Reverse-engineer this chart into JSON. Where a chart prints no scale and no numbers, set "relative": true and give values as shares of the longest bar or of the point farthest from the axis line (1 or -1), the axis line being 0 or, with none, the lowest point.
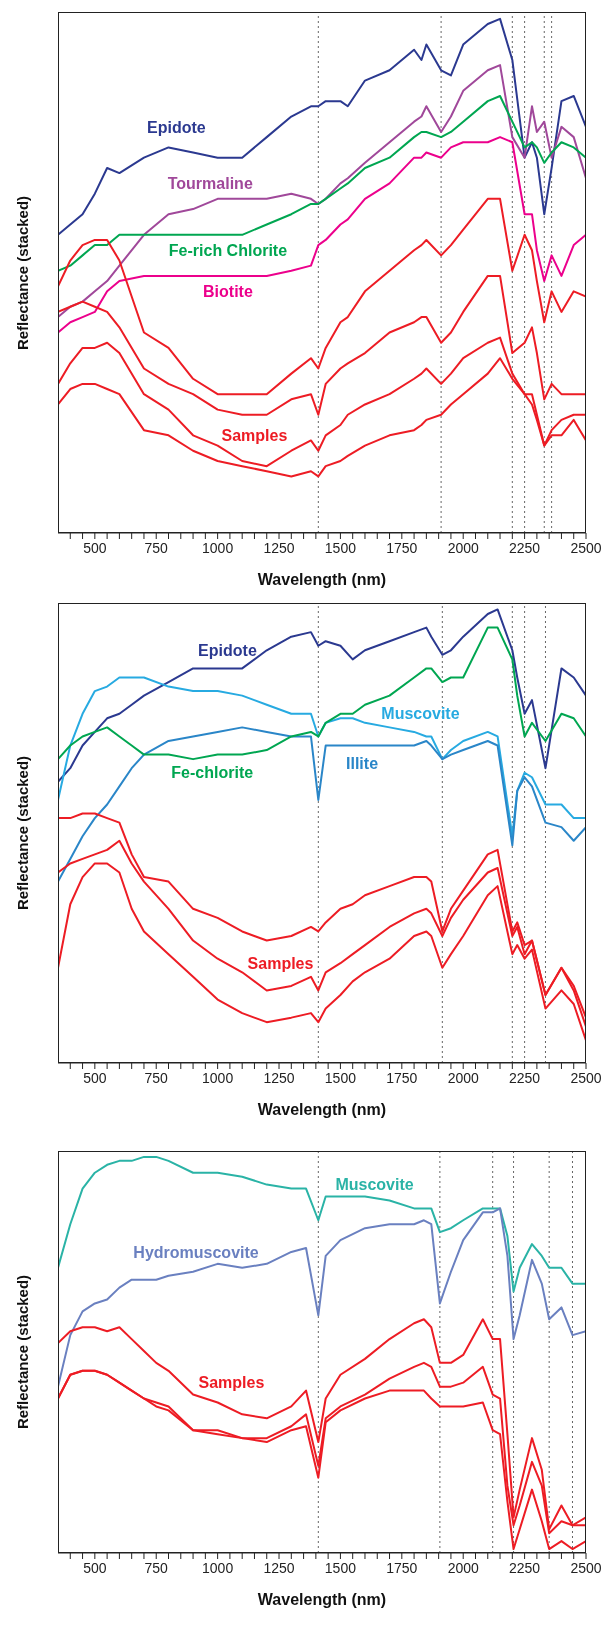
{
  "chart_data": [
    {
      "type": "line",
      "relative": true,
      "xlabel": "Wavelength (nm)",
      "ylabel": "Reflectance (stacked)",
      "marker": "none",
      "line_style": "solid",
      "xlim": [
        350,
        2500
      ],
      "xticks": [
        {
          "value": 400,
          "label": null
        },
        {
          "value": 450,
          "label": null
        },
        500,
        {
          "value": 550,
          "label": null
        },
        {
          "value": 600,
          "label": null
        },
        {
          "value": 650,
          "label": null
        },
        {
          "value": 700,
          "label": null
        },
        750,
        {
          "value": 800,
          "label": null
        },
        {
          "value": 850,
          "label": null
        },
        {
          "value": 900,
          "label": null
        },
        {
          "value": 950,
          "label": null
        },
        1000,
        {
          "value": 1050,
          "label": null
        },
        {
          "value": 1100,
          "label": null
        },
        {
          "value": 1150,
          "label": null
        },
        {
          "value": 1200,
          "label": null
        },
        1250,
        {
          "value": 1300,
          "label": null
        },
        {
          "value": 1350,
          "label": null
        },
        {
          "value": 1400,
          "label": null
        },
        {
          "value": 1450,
          "label": null
        },
        1500,
        {
          "value": 1550,
          "label": null
        },
        {
          "value": 1600,
          "label": null
        },
        {
          "value": 1650,
          "label": null
        },
        {
          "value": 1700,
          "label": null
        },
        1750,
        {
          "value": 1800,
          "label": null
        },
        {
          "value": 1850,
          "label": null
        },
        {
          "value": 1900,
          "label": null
        },
        {
          "value": 1950,
          "label": null
        },
        2000,
        {
          "value": 2050,
          "label": null
        },
        {
          "value": 2100,
          "label": null
        },
        {
          "value": 2150,
          "label": null
        },
        {
          "value": 2200,
          "label": null
        },
        2250,
        {
          "value": 2300,
          "label": null
        },
        {
          "value": 2350,
          "label": null
        },
        {
          "value": 2400,
          "label": null
        },
        {
          "value": 2450,
          "label": null
        },
        2500
      ],
      "x": [
        350,
        400,
        450,
        500,
        550,
        600,
        700,
        800,
        900,
        1000,
        1100,
        1200,
        1300,
        1380,
        1410,
        1440,
        1500,
        1530,
        1600,
        1700,
        1800,
        1830,
        1850,
        1910,
        1950,
        2000,
        2100,
        2150,
        2200,
        2250,
        2280,
        2300,
        2330,
        2360,
        2400,
        2450,
        2500
      ],
      "series": [
        {
          "name": "Epidote",
          "color": "#2b3990",
          "values": [
            0.58,
            0.6,
            0.62,
            0.66,
            0.71,
            0.7,
            0.73,
            0.75,
            0.74,
            0.73,
            0.73,
            0.77,
            0.81,
            0.83,
            0.83,
            0.84,
            0.84,
            0.83,
            0.88,
            0.9,
            0.94,
            0.92,
            0.95,
            0.9,
            0.89,
            0.95,
            0.99,
            1,
            0.92,
            0.73,
            0.76,
            0.73,
            0.62,
            0.71,
            0.84,
            0.85,
            0.79
          ]
        },
        {
          "name": "Tourmaline",
          "color": "#a0489a",
          "values": [
            0.42,
            0.44,
            0.45,
            0.47,
            0.49,
            0.52,
            0.58,
            0.62,
            0.63,
            0.65,
            0.65,
            0.65,
            0.66,
            0.65,
            0.64,
            0.65,
            0.68,
            0.69,
            0.72,
            0.76,
            0.8,
            0.81,
            0.83,
            0.78,
            0.81,
            0.86,
            0.9,
            0.91,
            0.77,
            0.73,
            0.83,
            0.78,
            0.8,
            0.73,
            0.79,
            0.77,
            0.69
          ]
        },
        {
          "name": "Fe-rich Chlorite",
          "color": "#00a651",
          "values": [
            0.51,
            0.52,
            0.54,
            0.56,
            0.56,
            0.58,
            0.58,
            0.58,
            0.58,
            0.58,
            0.58,
            0.6,
            0.62,
            0.64,
            0.64,
            0.65,
            0.67,
            0.68,
            0.71,
            0.73,
            0.77,
            0.78,
            0.78,
            0.77,
            0.78,
            0.8,
            0.84,
            0.85,
            0.8,
            0.75,
            0.76,
            0.75,
            0.72,
            0.74,
            0.76,
            0.75,
            0.73
          ]
        },
        {
          "name": "Biotite",
          "color": "#ec008c",
          "values": [
            0.39,
            0.41,
            0.42,
            0.43,
            0.47,
            0.49,
            0.5,
            0.5,
            0.5,
            0.5,
            0.5,
            0.5,
            0.51,
            0.52,
            0.56,
            0.57,
            0.6,
            0.61,
            0.65,
            0.68,
            0.73,
            0.73,
            0.74,
            0.73,
            0.75,
            0.76,
            0.76,
            0.77,
            0.76,
            0.62,
            0.62,
            0.55,
            0.49,
            0.54,
            0.5,
            0.56,
            0.58
          ]
        },
        {
          "name": "Samples",
          "color": "#ed1c24",
          "values": [
            0.48,
            0.53,
            0.56,
            0.57,
            0.57,
            0.53,
            0.39,
            0.36,
            0.3,
            0.27,
            0.27,
            0.27,
            0.31,
            0.34,
            0.32,
            0.36,
            0.41,
            0.42,
            0.47,
            0.51,
            0.55,
            0.56,
            0.57,
            0.54,
            0.56,
            0.59,
            0.65,
            0.65,
            0.51,
            0.58,
            0.55,
            0.49,
            0.41,
            0.47,
            0.43,
            0.47,
            0.46
          ]
        },
        {
          "color": "#ed1c24",
          "values": [
            0.43,
            0.44,
            0.45,
            0.44,
            0.43,
            0.4,
            0.32,
            0.29,
            0.27,
            0.24,
            0.23,
            0.23,
            0.26,
            0.27,
            0.23,
            0.29,
            0.32,
            0.33,
            0.35,
            0.39,
            0.41,
            0.42,
            0.42,
            0.37,
            0.39,
            0.43,
            0.5,
            0.5,
            0.35,
            0.37,
            0.4,
            0.35,
            0.26,
            0.29,
            0.27,
            0.27,
            0.27
          ]
        },
        {
          "color": "#ed1c24",
          "values": [
            0.29,
            0.33,
            0.36,
            0.36,
            0.37,
            0.35,
            0.27,
            0.24,
            0.19,
            0.17,
            0.14,
            0.13,
            0.16,
            0.18,
            0.16,
            0.19,
            0.21,
            0.23,
            0.25,
            0.27,
            0.3,
            0.31,
            0.32,
            0.29,
            0.31,
            0.34,
            0.37,
            0.38,
            0.31,
            0.27,
            0.27,
            0.23,
            0.17,
            0.2,
            0.22,
            0.23,
            0.23
          ]
        },
        {
          "color": "#ed1c24",
          "values": [
            0.25,
            0.28,
            0.29,
            0.29,
            0.28,
            0.27,
            0.2,
            0.19,
            0.16,
            0.14,
            0.13,
            0.12,
            0.11,
            0.12,
            0.11,
            0.13,
            0.14,
            0.15,
            0.17,
            0.19,
            0.2,
            0.21,
            0.22,
            0.23,
            0.25,
            0.27,
            0.31,
            0.34,
            0.3,
            0.27,
            0.25,
            0.22,
            0.17,
            0.19,
            0.19,
            0.22,
            0.18
          ]
        }
      ],
      "ref_lines": [
        {
          "axis": "x",
          "value": 1410,
          "color": "#666666",
          "line_style": "dotted"
        },
        {
          "axis": "x",
          "value": 1910,
          "color": "#666666",
          "line_style": "dotted"
        },
        {
          "axis": "x",
          "value": 2200,
          "color": "#666666",
          "line_style": "dotted"
        },
        {
          "axis": "x",
          "value": 2250,
          "color": "#666666",
          "line_style": "dotted"
        },
        {
          "axis": "x",
          "value": 2330,
          "color": "#666666",
          "line_style": "dotted"
        },
        {
          "axis": "x",
          "value": 2360,
          "color": "#666666",
          "line_style": "dotted"
        }
      ]
    },
    {
      "type": "line",
      "relative": true,
      "xlabel": "Wavelength (nm)",
      "ylabel": "Reflectance (stacked)",
      "marker": "none",
      "line_style": "solid",
      "xlim": [
        350,
        2500
      ],
      "xticks": [
        {
          "value": 400,
          "label": null
        },
        {
          "value": 450,
          "label": null
        },
        500,
        {
          "value": 550,
          "label": null
        },
        {
          "value": 600,
          "label": null
        },
        {
          "value": 650,
          "label": null
        },
        {
          "value": 700,
          "label": null
        },
        750,
        {
          "value": 800,
          "label": null
        },
        {
          "value": 850,
          "label": null
        },
        {
          "value": 900,
          "label": null
        },
        {
          "value": 950,
          "label": null
        },
        1000,
        {
          "value": 1050,
          "label": null
        },
        {
          "value": 1100,
          "label": null
        },
        {
          "value": 1150,
          "label": null
        },
        {
          "value": 1200,
          "label": null
        },
        1250,
        {
          "value": 1300,
          "label": null
        },
        {
          "value": 1350,
          "label": null
        },
        {
          "value": 1400,
          "label": null
        },
        {
          "value": 1450,
          "label": null
        },
        1500,
        {
          "value": 1550,
          "label": null
        },
        {
          "value": 1600,
          "label": null
        },
        {
          "value": 1650,
          "label": null
        },
        {
          "value": 1700,
          "label": null
        },
        1750,
        {
          "value": 1800,
          "label": null
        },
        {
          "value": 1850,
          "label": null
        },
        {
          "value": 1900,
          "label": null
        },
        {
          "value": 1950,
          "label": null
        },
        2000,
        {
          "value": 2050,
          "label": null
        },
        {
          "value": 2100,
          "label": null
        },
        {
          "value": 2150,
          "label": null
        },
        {
          "value": 2200,
          "label": null
        },
        2250,
        {
          "value": 2300,
          "label": null
        },
        {
          "value": 2350,
          "label": null
        },
        {
          "value": 2400,
          "label": null
        },
        {
          "value": 2450,
          "label": null
        },
        2500
      ],
      "x": [
        350,
        400,
        450,
        500,
        550,
        600,
        650,
        700,
        800,
        900,
        1000,
        1100,
        1200,
        1300,
        1380,
        1410,
        1440,
        1500,
        1550,
        1600,
        1700,
        1800,
        1850,
        1870,
        1915,
        1950,
        2000,
        2100,
        2140,
        2200,
        2220,
        2250,
        2280,
        2335,
        2400,
        2450,
        2500
      ],
      "series": [
        {
          "name": "Epidote",
          "color": "#2b3990",
          "values": [
            0.62,
            0.65,
            0.7,
            0.73,
            0.76,
            0.77,
            0.79,
            0.81,
            0.84,
            0.87,
            0.87,
            0.87,
            0.91,
            0.94,
            0.95,
            0.92,
            0.93,
            0.92,
            0.89,
            0.91,
            0.93,
            0.95,
            0.96,
            0.94,
            0.9,
            0.91,
            0.94,
            0.99,
            1,
            0.91,
            0.85,
            0.77,
            0.8,
            0.65,
            0.87,
            0.85,
            0.81
          ]
        },
        {
          "name": "Muscovite",
          "color": "#27aae1",
          "values": [
            0.58,
            0.7,
            0.77,
            0.82,
            0.83,
            0.85,
            0.85,
            0.85,
            0.83,
            0.82,
            0.82,
            0.81,
            0.79,
            0.77,
            0.77,
            0.72,
            0.75,
            0.76,
            0.76,
            0.75,
            0.74,
            0.73,
            0.72,
            0.72,
            0.67,
            0.69,
            0.71,
            0.73,
            0.72,
            0.5,
            0.6,
            0.64,
            0.63,
            0.57,
            0.57,
            0.54,
            0.54
          ]
        },
        {
          "name": "Illite",
          "color": "#2a86c8",
          "values": [
            0.4,
            0.45,
            0.5,
            0.54,
            0.57,
            0.61,
            0.65,
            0.68,
            0.71,
            0.72,
            0.73,
            0.74,
            0.73,
            0.72,
            0.72,
            0.58,
            0.7,
            0.7,
            0.7,
            0.7,
            0.7,
            0.7,
            0.71,
            0.7,
            0.67,
            0.68,
            0.69,
            0.71,
            0.7,
            0.48,
            0.6,
            0.63,
            0.61,
            0.53,
            0.52,
            0.49,
            0.52
          ]
        },
        {
          "name": "Fe-chlorite",
          "color": "#00a651",
          "values": [
            0.67,
            0.7,
            0.72,
            0.73,
            0.74,
            0.72,
            0.7,
            0.68,
            0.68,
            0.67,
            0.68,
            0.68,
            0.69,
            0.72,
            0.73,
            0.72,
            0.75,
            0.77,
            0.77,
            0.79,
            0.81,
            0.85,
            0.87,
            0.87,
            0.84,
            0.85,
            0.85,
            0.96,
            0.96,
            0.89,
            0.81,
            0.72,
            0.75,
            0.71,
            0.77,
            0.76,
            0.72
          ]
        },
        {
          "name": "Samples",
          "color": "#ed1c24",
          "values": [
            0.54,
            0.54,
            0.55,
            0.55,
            0.54,
            0.53,
            0.46,
            0.41,
            0.4,
            0.34,
            0.32,
            0.29,
            0.27,
            0.28,
            0.3,
            0.29,
            0.31,
            0.34,
            0.35,
            0.37,
            0.39,
            0.41,
            0.41,
            0.4,
            0.29,
            0.34,
            0.38,
            0.46,
            0.47,
            0.29,
            0.31,
            0.26,
            0.27,
            0.15,
            0.21,
            0.17,
            0.1
          ]
        },
        {
          "color": "#ed1c24",
          "values": [
            0.42,
            0.44,
            0.45,
            0.46,
            0.47,
            0.49,
            0.44,
            0.4,
            0.34,
            0.27,
            0.23,
            0.2,
            0.16,
            0.17,
            0.19,
            0.16,
            0.2,
            0.22,
            0.24,
            0.26,
            0.3,
            0.33,
            0.34,
            0.33,
            0.28,
            0.32,
            0.36,
            0.42,
            0.43,
            0.28,
            0.3,
            0.24,
            0.27,
            0.15,
            0.21,
            0.16,
            0.08
          ]
        },
        {
          "color": "#ed1c24",
          "values": [
            0.21,
            0.35,
            0.41,
            0.44,
            0.44,
            0.42,
            0.34,
            0.29,
            0.24,
            0.19,
            0.14,
            0.11,
            0.09,
            0.1,
            0.11,
            0.09,
            0.12,
            0.15,
            0.18,
            0.2,
            0.23,
            0.28,
            0.29,
            0.28,
            0.21,
            0.24,
            0.28,
            0.37,
            0.39,
            0.24,
            0.26,
            0.23,
            0.25,
            0.12,
            0.16,
            0.13,
            0.05
          ]
        }
      ],
      "ref_lines": [
        {
          "axis": "x",
          "value": 1410,
          "color": "#666666",
          "line_style": "dotted"
        },
        {
          "axis": "x",
          "value": 1915,
          "color": "#666666",
          "line_style": "dotted"
        },
        {
          "axis": "x",
          "value": 2200,
          "color": "#666666",
          "line_style": "dotted"
        },
        {
          "axis": "x",
          "value": 2250,
          "color": "#666666",
          "line_style": "dotted"
        },
        {
          "axis": "x",
          "value": 2335,
          "color": "#666666",
          "line_style": "dotted"
        }
      ]
    },
    {
      "type": "line",
      "relative": true,
      "xlabel": "Wavelength (nm)",
      "ylabel": "Reflectance (stacked)",
      "marker": "none",
      "line_style": "solid",
      "xlim": [
        350,
        2500
      ],
      "xticks": [
        {
          "value": 400,
          "label": null
        },
        {
          "value": 450,
          "label": null
        },
        500,
        {
          "value": 550,
          "label": null
        },
        {
          "value": 600,
          "label": null
        },
        {
          "value": 650,
          "label": null
        },
        {
          "value": 700,
          "label": null
        },
        750,
        {
          "value": 800,
          "label": null
        },
        {
          "value": 850,
          "label": null
        },
        {
          "value": 900,
          "label": null
        },
        {
          "value": 950,
          "label": null
        },
        1000,
        {
          "value": 1050,
          "label": null
        },
        {
          "value": 1100,
          "label": null
        },
        {
          "value": 1150,
          "label": null
        },
        {
          "value": 1200,
          "label": null
        },
        1250,
        {
          "value": 1300,
          "label": null
        },
        {
          "value": 1350,
          "label": null
        },
        {
          "value": 1400,
          "label": null
        },
        {
          "value": 1450,
          "label": null
        },
        1500,
        {
          "value": 1550,
          "label": null
        },
        {
          "value": 1600,
          "label": null
        },
        {
          "value": 1650,
          "label": null
        },
        {
          "value": 1700,
          "label": null
        },
        1750,
        {
          "value": 1800,
          "label": null
        },
        {
          "value": 1850,
          "label": null
        },
        {
          "value": 1900,
          "label": null
        },
        {
          "value": 1950,
          "label": null
        },
        2000,
        {
          "value": 2050,
          "label": null
        },
        {
          "value": 2100,
          "label": null
        },
        {
          "value": 2150,
          "label": null
        },
        {
          "value": 2200,
          "label": null
        },
        2250,
        {
          "value": 2300,
          "label": null
        },
        {
          "value": 2350,
          "label": null
        },
        {
          "value": 2400,
          "label": null
        },
        {
          "value": 2450,
          "label": null
        },
        2500
      ],
      "x": [
        350,
        400,
        450,
        500,
        550,
        600,
        650,
        700,
        750,
        800,
        900,
        1000,
        1100,
        1200,
        1300,
        1360,
        1410,
        1440,
        1500,
        1600,
        1700,
        1800,
        1840,
        1870,
        1905,
        1950,
        2000,
        2080,
        2120,
        2150,
        2180,
        2205,
        2230,
        2280,
        2320,
        2350,
        2400,
        2445,
        2500
      ],
      "series": [
        {
          "name": "Muscovite",
          "color": "#2ab3a6",
          "values": [
            0.72,
            0.83,
            0.92,
            0.96,
            0.98,
            0.99,
            0.99,
            1,
            1,
            0.99,
            0.96,
            0.96,
            0.95,
            0.93,
            0.92,
            0.92,
            0.84,
            0.9,
            0.9,
            0.9,
            0.89,
            0.87,
            0.87,
            0.87,
            0.81,
            0.82,
            0.84,
            0.87,
            0.87,
            0.87,
            0.8,
            0.66,
            0.72,
            0.78,
            0.75,
            0.72,
            0.72,
            0.68,
            0.68
          ]
        },
        {
          "name": "Hydromuscovite",
          "color": "#6a80c0",
          "values": [
            0.42,
            0.55,
            0.61,
            0.63,
            0.64,
            0.67,
            0.69,
            0.69,
            0.69,
            0.7,
            0.71,
            0.73,
            0.72,
            0.73,
            0.76,
            0.77,
            0.6,
            0.75,
            0.79,
            0.82,
            0.83,
            0.83,
            0.84,
            0.83,
            0.63,
            0.71,
            0.79,
            0.86,
            0.86,
            0.87,
            0.75,
            0.54,
            0.6,
            0.74,
            0.68,
            0.59,
            0.62,
            0.55,
            0.56
          ]
        },
        {
          "name": "Samples",
          "color": "#ed1c24",
          "values": [
            0.53,
            0.56,
            0.57,
            0.57,
            0.56,
            0.57,
            0.54,
            0.51,
            0.48,
            0.46,
            0.4,
            0.38,
            0.35,
            0.34,
            0.37,
            0.41,
            0.28,
            0.39,
            0.45,
            0.49,
            0.54,
            0.58,
            0.59,
            0.57,
            0.48,
            0.48,
            0.5,
            0.59,
            0.54,
            0.54,
            0.3,
            0.09,
            0.16,
            0.29,
            0.21,
            0.06,
            0.12,
            0.07,
            0.09
          ]
        },
        {
          "color": "#ed1c24",
          "values": [
            0.39,
            0.45,
            0.46,
            0.46,
            0.45,
            0.43,
            0.41,
            0.39,
            0.38,
            0.37,
            0.31,
            0.31,
            0.29,
            0.29,
            0.32,
            0.35,
            0.22,
            0.34,
            0.37,
            0.4,
            0.44,
            0.47,
            0.48,
            0.47,
            0.42,
            0.42,
            0.43,
            0.47,
            0.4,
            0.39,
            0.17,
            0.07,
            0.12,
            0.23,
            0.17,
            0.05,
            0.08,
            0.07,
            0.07
          ]
        },
        {
          "color": "#ed1c24",
          "values": [
            0.39,
            0.45,
            0.46,
            0.46,
            0.45,
            0.43,
            0.41,
            0.39,
            0.37,
            0.36,
            0.31,
            0.3,
            0.29,
            0.28,
            0.31,
            0.32,
            0.19,
            0.33,
            0.36,
            0.39,
            0.41,
            0.41,
            0.41,
            0.39,
            0.37,
            0.37,
            0.37,
            0.38,
            0.31,
            0.3,
            0.13,
            0.01,
            0.06,
            0.16,
            0.08,
            0.01,
            0.03,
            0.01,
            0.03
          ]
        }
      ],
      "ref_lines": [
        {
          "axis": "x",
          "value": 1410,
          "color": "#666666",
          "line_style": "dotted"
        },
        {
          "axis": "x",
          "value": 1905,
          "color": "#666666",
          "line_style": "dotted"
        },
        {
          "axis": "x",
          "value": 2120,
          "color": "#666666",
          "line_style": "dotted"
        },
        {
          "axis": "x",
          "value": 2205,
          "color": "#666666",
          "line_style": "dotted"
        },
        {
          "axis": "x",
          "value": 2350,
          "color": "#666666",
          "line_style": "dotted"
        },
        {
          "axis": "x",
          "value": 2445,
          "color": "#666666",
          "line_style": "dotted"
        }
      ]
    }
  ]
}
